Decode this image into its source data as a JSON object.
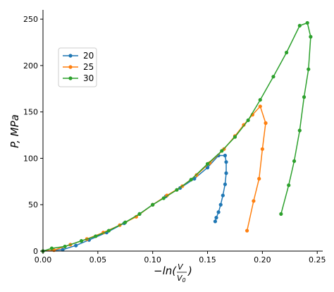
{
  "chart_data": {
    "type": "line",
    "xlabel": "−ln(V/V0)",
    "ylabel": "P, MPa",
    "xlim": [
      0,
      0.255
    ],
    "ylim": [
      0,
      260
    ],
    "xticks": [
      "0.00",
      "0.05",
      "0.10",
      "0.15",
      "0.20",
      "0.25"
    ],
    "xtick_values": [
      0,
      0.05,
      0.1,
      0.15,
      0.2,
      0.25
    ],
    "yticks": [
      "0",
      "50",
      "100",
      "150",
      "200",
      "250"
    ],
    "ytick_values": [
      0,
      50,
      100,
      150,
      200,
      250
    ],
    "legend_position": "upper-left",
    "series": [
      {
        "name": "20",
        "color": "#1f77b4",
        "points": [
          [
            0,
            0
          ],
          [
            0.018,
            1.5
          ],
          [
            0.03,
            6
          ],
          [
            0.042,
            12
          ],
          [
            0.058,
            20
          ],
          [
            0.074,
            30
          ],
          [
            0.088,
            40
          ],
          [
            0.1,
            50
          ],
          [
            0.112,
            59
          ],
          [
            0.125,
            68
          ],
          [
            0.138,
            78
          ],
          [
            0.15,
            90
          ],
          [
            0.16,
            103
          ],
          [
            0.166,
            103
          ],
          [
            0.167,
            96
          ],
          [
            0.167,
            84
          ],
          [
            0.166,
            72
          ],
          [
            0.164,
            60
          ],
          [
            0.162,
            50
          ],
          [
            0.16,
            42
          ],
          [
            0.158,
            36
          ],
          [
            0.157,
            32
          ]
        ]
      },
      {
        "name": "25",
        "color": "#ff7f0e",
        "points": [
          [
            0,
            0
          ],
          [
            0.01,
            1
          ],
          [
            0.025,
            7
          ],
          [
            0.04,
            13
          ],
          [
            0.055,
            20
          ],
          [
            0.07,
            28
          ],
          [
            0.085,
            37
          ],
          [
            0.1,
            50
          ],
          [
            0.113,
            60
          ],
          [
            0.127,
            70
          ],
          [
            0.14,
            82
          ],
          [
            0.152,
            95
          ],
          [
            0.165,
            110
          ],
          [
            0.175,
            124
          ],
          [
            0.183,
            136
          ],
          [
            0.191,
            147
          ],
          [
            0.198,
            156
          ],
          [
            0.203,
            138
          ],
          [
            0.2,
            110
          ],
          [
            0.197,
            78
          ],
          [
            0.192,
            54
          ],
          [
            0.186,
            22
          ]
        ]
      },
      {
        "name": "30",
        "color": "#2ca02c",
        "points": [
          [
            0,
            0
          ],
          [
            0.008,
            3
          ],
          [
            0.02,
            5
          ],
          [
            0.035,
            11
          ],
          [
            0.048,
            16
          ],
          [
            0.06,
            22
          ],
          [
            0.075,
            31
          ],
          [
            0.088,
            40
          ],
          [
            0.1,
            50
          ],
          [
            0.11,
            57
          ],
          [
            0.122,
            66
          ],
          [
            0.135,
            77
          ],
          [
            0.15,
            94
          ],
          [
            0.163,
            108
          ],
          [
            0.175,
            123
          ],
          [
            0.187,
            141
          ],
          [
            0.198,
            163
          ],
          [
            0.21,
            188
          ],
          [
            0.222,
            214
          ],
          [
            0.234,
            243
          ],
          [
            0.241,
            246
          ],
          [
            0.244,
            231
          ],
          [
            0.242,
            196
          ],
          [
            0.238,
            166
          ],
          [
            0.234,
            130
          ],
          [
            0.229,
            97
          ],
          [
            0.224,
            71
          ],
          [
            0.217,
            40
          ]
        ]
      }
    ]
  }
}
